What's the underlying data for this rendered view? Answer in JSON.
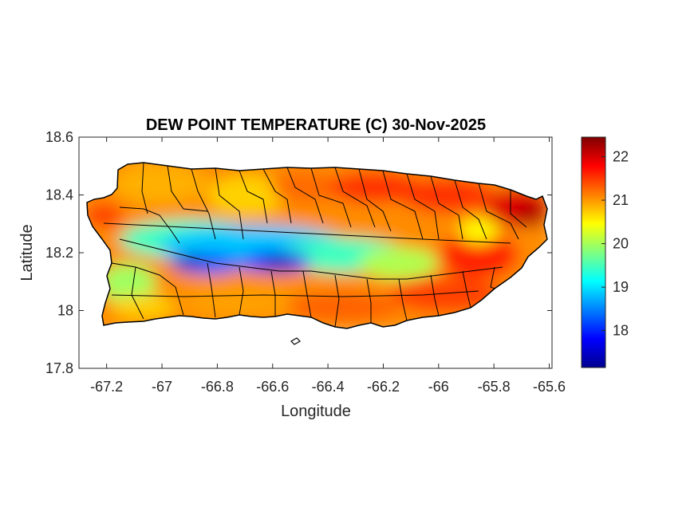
{
  "chart_data": {
    "type": "heatmap",
    "title": "DEW POINT TEMPERATURE (C) 30-Nov-2025",
    "xlabel": "Longitude",
    "ylabel": "Latitude",
    "xlim": [
      -67.3,
      -65.59
    ],
    "ylim": [
      17.8,
      18.6
    ],
    "xticks": [
      -67.2,
      -67,
      -66.8,
      -66.6,
      -66.4,
      -66.2,
      -66,
      -65.8,
      -65.6
    ],
    "xtick_labels": [
      "-67.2",
      "-67",
      "-66.8",
      "-66.6",
      "-66.4",
      "-66.2",
      "-66",
      "-65.8",
      "-65.6"
    ],
    "yticks": [
      17.8,
      18,
      18.2,
      18.4,
      18.6
    ],
    "ytick_labels": [
      "17.8",
      "18",
      "18.2",
      "18.4",
      "18.6"
    ],
    "colorbar": {
      "range": [
        17.15,
        22.45
      ],
      "ticks": [
        18,
        19,
        20,
        21,
        22
      ],
      "tick_labels": [
        "18",
        "19",
        "20",
        "21",
        "22"
      ],
      "colormap": "jet"
    },
    "field_summary": {
      "min_value_approx": 17.3,
      "max_value_approx": 22.3,
      "low_region": "central interior mountains near -66.9 to -66.55, 18.15-18.2",
      "high_region": "northeast coast near -65.75 to -65.65, 18.35-18.4"
    }
  }
}
